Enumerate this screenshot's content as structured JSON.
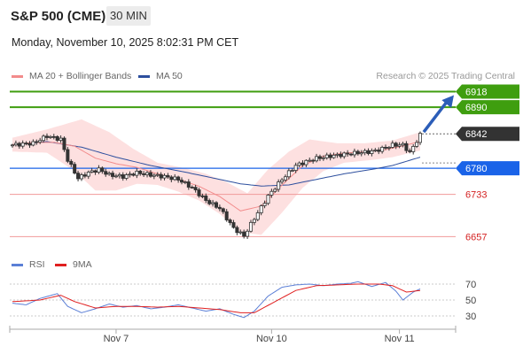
{
  "header": {
    "title": "S&P 500 (CME)",
    "timeframe": "30 MIN"
  },
  "datetime": "Monday, November 10, 2025 8:02:31 PM CET",
  "legend": {
    "ma20": {
      "label": "MA 20 + Bollinger Bands",
      "color": "#f28b8b"
    },
    "ma50": {
      "label": "MA 50",
      "color": "#2d4f9e"
    }
  },
  "credit": "Research © 2025 Trading Central",
  "rsi_legend": {
    "rsi": {
      "label": "RSI",
      "color": "#5b7fd6"
    },
    "ma9": {
      "label": "9MA",
      "color": "#e02020"
    }
  },
  "chart_data": [
    {
      "type": "candlestick",
      "x_ticks": [
        "Nov 7",
        "Nov 10",
        "Nov 11"
      ],
      "ylim": [
        6640,
        6930
      ],
      "current_price": 6842,
      "levels": [
        {
          "value": 6918,
          "label": "6918",
          "kind": "target",
          "color": "#3f9e0f"
        },
        {
          "value": 6890,
          "label": "6890",
          "kind": "target",
          "color": "#3f9e0f"
        },
        {
          "value": 6842,
          "label": "6842",
          "kind": "current",
          "color": "#333333"
        },
        {
          "value": 6780,
          "label": "6780",
          "kind": "pivot",
          "color": "#1a63e8"
        },
        {
          "value": 6733,
          "label": "6733",
          "kind": "support",
          "color": "#d42222"
        },
        {
          "value": 6657,
          "label": "6657",
          "kind": "support",
          "color": "#d42222"
        }
      ],
      "close_anchors": [
        [
          0,
          6822
        ],
        [
          6,
          6825
        ],
        [
          10,
          6838
        ],
        [
          14,
          6832
        ],
        [
          16,
          6795
        ],
        [
          19,
          6762
        ],
        [
          22,
          6772
        ],
        [
          25,
          6778
        ],
        [
          28,
          6768
        ],
        [
          32,
          6765
        ],
        [
          36,
          6772
        ],
        [
          40,
          6768
        ],
        [
          44,
          6765
        ],
        [
          48,
          6760
        ],
        [
          52,
          6745
        ],
        [
          56,
          6722
        ],
        [
          60,
          6708
        ],
        [
          64,
          6672
        ],
        [
          67,
          6658
        ],
        [
          70,
          6690
        ],
        [
          74,
          6730
        ],
        [
          78,
          6760
        ],
        [
          82,
          6785
        ],
        [
          85,
          6792
        ],
        [
          88,
          6798
        ],
        [
          92,
          6802
        ],
        [
          96,
          6805
        ],
        [
          100,
          6808
        ],
        [
          104,
          6810
        ],
        [
          107,
          6815
        ],
        [
          110,
          6822
        ],
        [
          113,
          6822
        ],
        [
          115,
          6808
        ],
        [
          118,
          6840
        ]
      ],
      "bands": {
        "upper": [
          [
            0,
            6835
          ],
          [
            10,
            6850
          ],
          [
            20,
            6868
          ],
          [
            28,
            6845
          ],
          [
            35,
            6815
          ],
          [
            42,
            6790
          ],
          [
            50,
            6780
          ],
          [
            56,
            6770
          ],
          [
            62,
            6755
          ],
          [
            68,
            6735
          ],
          [
            74,
            6778
          ],
          [
            80,
            6810
          ],
          [
            86,
            6832
          ],
          [
            94,
            6825
          ],
          [
            102,
            6825
          ],
          [
            110,
            6830
          ],
          [
            118,
            6845
          ]
        ],
        "lower": [
          [
            0,
            6810
          ],
          [
            10,
            6808
          ],
          [
            18,
            6775
          ],
          [
            24,
            6740
          ],
          [
            30,
            6740
          ],
          [
            36,
            6752
          ],
          [
            42,
            6750
          ],
          [
            48,
            6738
          ],
          [
            54,
            6722
          ],
          [
            60,
            6698
          ],
          [
            66,
            6665
          ],
          [
            72,
            6660
          ],
          [
            78,
            6700
          ],
          [
            84,
            6745
          ],
          [
            90,
            6775
          ],
          [
            96,
            6790
          ],
          [
            104,
            6795
          ],
          [
            110,
            6800
          ],
          [
            118,
            6812
          ]
        ]
      },
      "ma50": [
        [
          0,
          6822
        ],
        [
          10,
          6828
        ],
        [
          20,
          6818
        ],
        [
          30,
          6800
        ],
        [
          40,
          6785
        ],
        [
          50,
          6773
        ],
        [
          60,
          6760
        ],
        [
          66,
          6752
        ],
        [
          72,
          6748
        ],
        [
          80,
          6750
        ],
        [
          88,
          6760
        ],
        [
          96,
          6770
        ],
        [
          104,
          6778
        ],
        [
          110,
          6785
        ],
        [
          118,
          6800
        ]
      ]
    },
    {
      "type": "line",
      "name": "RSI",
      "ylim": [
        20,
        80
      ],
      "y_ticks": [
        70,
        50,
        30
      ],
      "rsi": [
        [
          0,
          46
        ],
        [
          4,
          44
        ],
        [
          8,
          52
        ],
        [
          13,
          58
        ],
        [
          16,
          42
        ],
        [
          20,
          34
        ],
        [
          24,
          39
        ],
        [
          28,
          45
        ],
        [
          32,
          41
        ],
        [
          36,
          43
        ],
        [
          40,
          39
        ],
        [
          44,
          41
        ],
        [
          48,
          44
        ],
        [
          52,
          40
        ],
        [
          56,
          36
        ],
        [
          60,
          39
        ],
        [
          64,
          32
        ],
        [
          67,
          28
        ],
        [
          70,
          36
        ],
        [
          74,
          55
        ],
        [
          78,
          66
        ],
        [
          82,
          69
        ],
        [
          86,
          70
        ],
        [
          90,
          68
        ],
        [
          94,
          70
        ],
        [
          98,
          71
        ],
        [
          100,
          73
        ],
        [
          104,
          67
        ],
        [
          108,
          72
        ],
        [
          111,
          61
        ],
        [
          113,
          50
        ],
        [
          116,
          60
        ],
        [
          118,
          64
        ]
      ],
      "ma9": [
        [
          0,
          48
        ],
        [
          8,
          50
        ],
        [
          14,
          56
        ],
        [
          18,
          48
        ],
        [
          24,
          40
        ],
        [
          30,
          42
        ],
        [
          36,
          42
        ],
        [
          42,
          41
        ],
        [
          48,
          42
        ],
        [
          54,
          40
        ],
        [
          60,
          38
        ],
        [
          66,
          34
        ],
        [
          70,
          34
        ],
        [
          76,
          48
        ],
        [
          82,
          62
        ],
        [
          88,
          68
        ],
        [
          94,
          69
        ],
        [
          100,
          70
        ],
        [
          106,
          70
        ],
        [
          110,
          68
        ],
        [
          114,
          60
        ],
        [
          118,
          62
        ]
      ]
    }
  ]
}
